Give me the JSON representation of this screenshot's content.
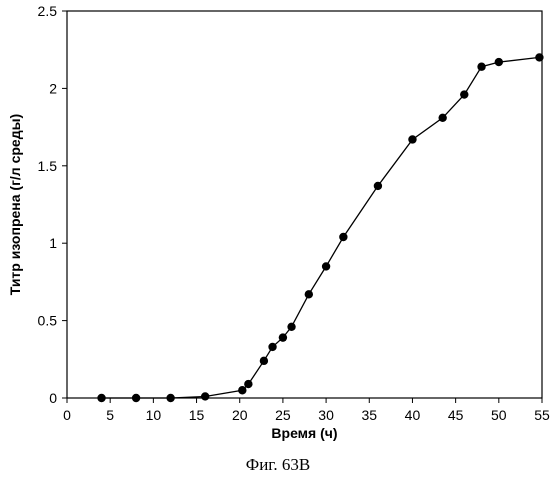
{
  "chart_data": {
    "type": "line",
    "title": "",
    "xlabel": "Время (ч)",
    "ylabel": "Титр изопрена (г/л среды)",
    "xlim": [
      0,
      55
    ],
    "ylim": [
      0,
      2.5
    ],
    "xticks": [
      0,
      5,
      10,
      15,
      20,
      25,
      30,
      35,
      40,
      45,
      50,
      55
    ],
    "yticks": [
      0,
      0.5,
      1,
      1.5,
      2,
      2.5
    ],
    "xtick_labels": [
      "0",
      "5",
      "10",
      "15",
      "20",
      "25",
      "30",
      "35",
      "40",
      "45",
      "50",
      "55"
    ],
    "ytick_labels": [
      "0",
      "0.5",
      "1",
      "1.5",
      "2",
      "2.5"
    ],
    "grid": false,
    "legend": "none",
    "series": [
      {
        "color": "#000000",
        "marker": "circle",
        "x": [
          4,
          8,
          12,
          16,
          20.3,
          21,
          22.8,
          23.8,
          25,
          26,
          28,
          30,
          32,
          36,
          40,
          43.5,
          46,
          48,
          50,
          54.7
        ],
        "y": [
          0.0,
          0.0,
          0.0,
          0.01,
          0.05,
          0.09,
          0.24,
          0.33,
          0.39,
          0.46,
          0.67,
          0.85,
          1.04,
          1.37,
          1.67,
          1.81,
          1.96,
          2.14,
          2.17,
          2.2
        ]
      }
    ],
    "caption": "Фиг. 63B"
  }
}
